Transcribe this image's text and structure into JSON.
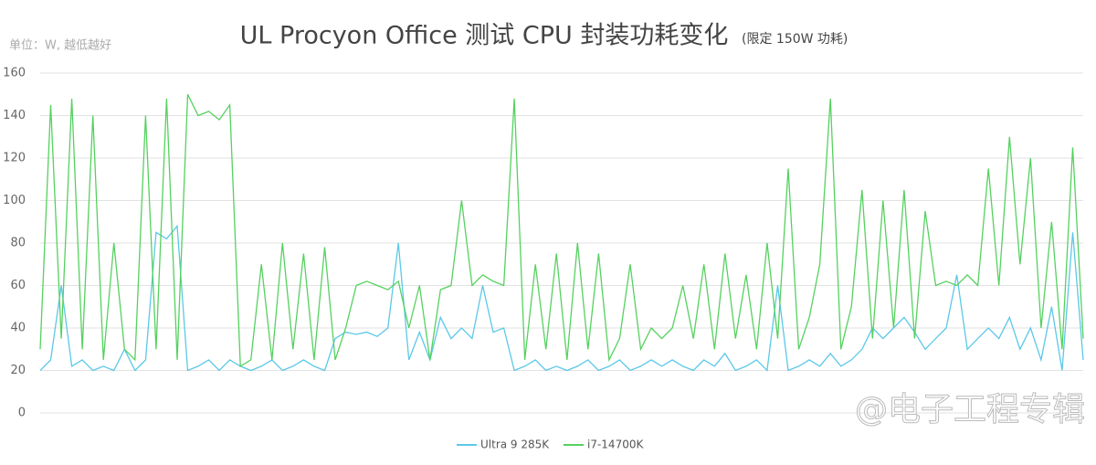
{
  "chart_data": {
    "type": "line",
    "title": "UL Procyon Office 测试 CPU 封装功耗变化",
    "subtitle": "(限定 150W 功耗)",
    "y_label": "单位：W, 越低越好",
    "watermark": "@电子工程专辑",
    "ylim": [
      0,
      160
    ],
    "yticks": [
      0,
      20,
      40,
      60,
      80,
      100,
      120,
      140,
      160
    ],
    "grid": true,
    "legend": "bottom",
    "categories": [
      null,
      null,
      null,
      null,
      null,
      null,
      null,
      null,
      null,
      null,
      null,
      null,
      null,
      null,
      null,
      null,
      null,
      null,
      null,
      null,
      null,
      null,
      null,
      null,
      null,
      null,
      null,
      null,
      null,
      null,
      null,
      null,
      null,
      null,
      null,
      null,
      null,
      null,
      null,
      null,
      null,
      null,
      null,
      null,
      null,
      null,
      null,
      null,
      null,
      null,
      null,
      null,
      null,
      null,
      null,
      null,
      null,
      null,
      null,
      null,
      null,
      null,
      null,
      null,
      null,
      null,
      null,
      null,
      null,
      null,
      null,
      null,
      null,
      null,
      null,
      null,
      null,
      null,
      null,
      null,
      null,
      null,
      null,
      null,
      null,
      null,
      null,
      null,
      null,
      null,
      null,
      null,
      null,
      null,
      null,
      null,
      null,
      null,
      null,
      null
    ],
    "series": [
      {
        "name": "Ultra 9 285K",
        "color": "#5bc8e8",
        "values": [
          20,
          25,
          60,
          22,
          25,
          20,
          22,
          20,
          30,
          20,
          25,
          85,
          82,
          88,
          20,
          22,
          25,
          20,
          25,
          22,
          20,
          22,
          25,
          20,
          22,
          25,
          22,
          20,
          35,
          38,
          37,
          38,
          36,
          40,
          80,
          25,
          38,
          25,
          45,
          35,
          40,
          35,
          60,
          38,
          40,
          20,
          22,
          25,
          20,
          22,
          20,
          22,
          25,
          20,
          22,
          25,
          20,
          22,
          25,
          22,
          25,
          22,
          20,
          25,
          22,
          28,
          20,
          22,
          25,
          20,
          60,
          20,
          22,
          25,
          22,
          28,
          22,
          25,
          30,
          40,
          35,
          40,
          45,
          38,
          30,
          35,
          40,
          65,
          30,
          35,
          40,
          35,
          45,
          30,
          40,
          25,
          50,
          20,
          85,
          25
        ]
      },
      {
        "name": "i7-14700K",
        "color": "#55d15f",
        "values": [
          30,
          145,
          35,
          148,
          30,
          140,
          25,
          80,
          30,
          25,
          140,
          30,
          148,
          25,
          150,
          140,
          142,
          138,
          145,
          22,
          25,
          70,
          25,
          80,
          30,
          75,
          25,
          78,
          25,
          40,
          60,
          62,
          60,
          58,
          62,
          40,
          60,
          25,
          58,
          60,
          100,
          60,
          65,
          62,
          60,
          148,
          25,
          70,
          30,
          75,
          25,
          80,
          30,
          75,
          25,
          35,
          70,
          30,
          40,
          35,
          40,
          60,
          35,
          70,
          30,
          75,
          35,
          65,
          30,
          80,
          35,
          115,
          30,
          45,
          70,
          148,
          30,
          50,
          105,
          35,
          100,
          40,
          105,
          35,
          95,
          60,
          62,
          60,
          65,
          60,
          115,
          60,
          130,
          70,
          120,
          40,
          90,
          30,
          125,
          35
        ]
      }
    ]
  }
}
